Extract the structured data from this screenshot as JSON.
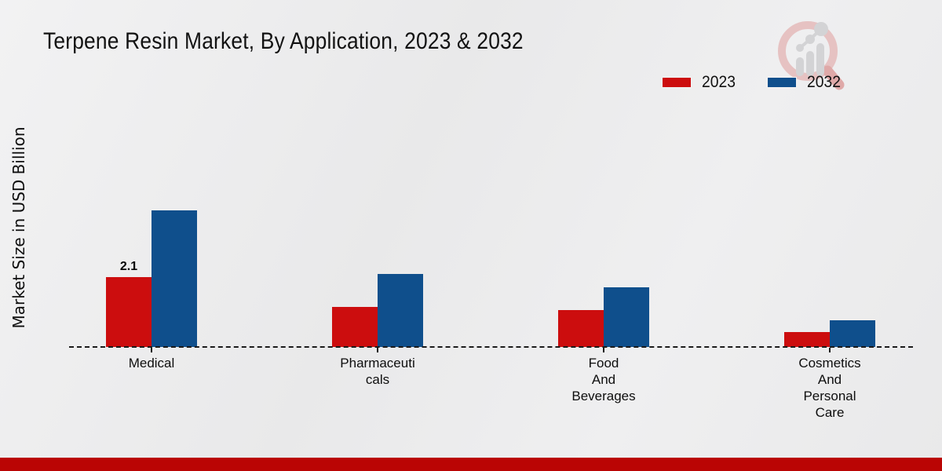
{
  "page": {
    "background_color": "#ececed",
    "bottom_band_color": "#ba0504"
  },
  "header": {
    "title": "Terpene Resin Market, By Application, 2023 & 2032"
  },
  "axes": {
    "y_axis_label": "Market Size in USD Billion"
  },
  "legend": {
    "position": "top-right",
    "items": [
      {
        "label": "2023",
        "color": "#cc0d0e"
      },
      {
        "label": "2032",
        "color": "#0f4f8c"
      }
    ]
  },
  "chart_data": {
    "type": "bar",
    "title": "Terpene Resin Market, By Application, 2023 & 2032",
    "xlabel": "",
    "ylabel": "Market Size in USD Billion",
    "categories": [
      "Medical",
      "Pharmaceuticals",
      "Food And Beverages",
      "Cosmetics And Personal Care"
    ],
    "category_label_lines": [
      [
        "Medical"
      ],
      [
        "Pharmaceuti",
        "cals"
      ],
      [
        "Food",
        "And",
        "Beverages"
      ],
      [
        "Cosmetics",
        "And",
        "Personal",
        "Care"
      ]
    ],
    "series": [
      {
        "name": "2023",
        "color": "#cc0d0e",
        "values": [
          2.1,
          1.2,
          1.1,
          0.45
        ]
      },
      {
        "name": "2032",
        "color": "#0f4f8c",
        "values": [
          4.1,
          2.2,
          1.8,
          0.8
        ]
      }
    ],
    "data_labels": [
      {
        "series": "2023",
        "category": "Medical",
        "text": "2.1"
      }
    ],
    "ylim": [
      0,
      4.5
    ],
    "grid": false,
    "baseline_style": "dashed",
    "legend_position": "top-right"
  },
  "watermark": {
    "description": "magnifying-glass-bar-chart-logo"
  }
}
